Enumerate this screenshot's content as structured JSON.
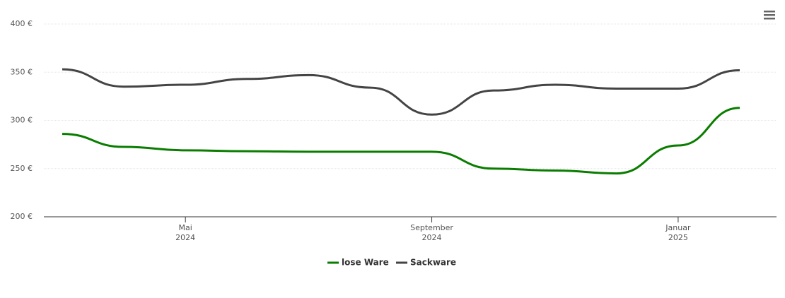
{
  "chart_data": {
    "type": "line",
    "x": [
      "2024-03",
      "2024-04",
      "2024-05",
      "2024-06",
      "2024-07",
      "2024-08",
      "2024-09",
      "2024-10",
      "2024-11",
      "2024-12",
      "2025-01",
      "2025-02"
    ],
    "series": [
      {
        "name": "lose Ware",
        "color": "#0a7d00",
        "values": [
          286,
          272.5,
          269,
          268,
          267.5,
          267.5,
          267.5,
          250,
          248,
          245,
          274,
          313
        ]
      },
      {
        "name": "Sackware",
        "color": "#444444",
        "values": [
          353,
          335,
          337,
          343,
          347,
          334,
          306,
          331,
          337,
          333,
          333,
          352
        ]
      }
    ],
    "xlim": [
      "2024-03",
      "2025-02"
    ],
    "xticks": [
      {
        "value": "2024-05",
        "label": "Mai 2024"
      },
      {
        "value": "2024-09",
        "label": "September 2024"
      },
      {
        "value": "2025-01",
        "label": "Januar 2025"
      }
    ],
    "ylim": [
      200,
      400
    ],
    "yticks": [
      {
        "value": 200,
        "label": "200 €"
      },
      {
        "value": 250,
        "label": "250 €"
      },
      {
        "value": 300,
        "label": "300 €"
      },
      {
        "value": 350,
        "label": "350 €"
      },
      {
        "value": 400,
        "label": "400 €"
      }
    ],
    "grid": true,
    "legend": "bottom"
  }
}
